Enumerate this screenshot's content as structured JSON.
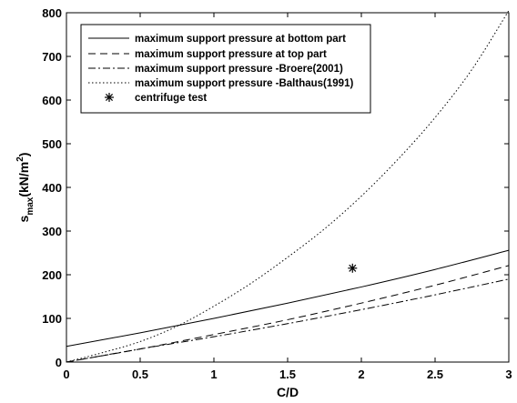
{
  "chart_data": {
    "type": "line",
    "xlabel": "C/D",
    "ylabel": {
      "main": "s",
      "sub": "max",
      "unit_open": "(kN/m",
      "unit_sup": "2",
      "unit_close": ")"
    },
    "xlim": [
      0,
      3
    ],
    "ylim": [
      0,
      800
    ],
    "xticks": [
      "0",
      "0.5",
      "1",
      "1.5",
      "2",
      "2.5",
      "3"
    ],
    "yticks": [
      "0",
      "100",
      "200",
      "300",
      "400",
      "500",
      "600",
      "700",
      "800"
    ],
    "grid": false,
    "legend_position": "top-left",
    "series": [
      {
        "name": "maximum support pressure at bottom part",
        "style": "solid",
        "color": "#000000",
        "x": [
          0,
          0.5,
          1,
          1.5,
          2,
          2.5,
          3
        ],
        "y": [
          36,
          67,
          100,
          135,
          172,
          212,
          256
        ]
      },
      {
        "name": "maximum support pressure at top part",
        "style": "dashed",
        "color": "#000000",
        "x": [
          0,
          0.5,
          1,
          1.5,
          2,
          2.5,
          3
        ],
        "y": [
          0,
          30,
          63,
          97,
          135,
          176,
          221
        ]
      },
      {
        "name": "maximum support pressure -Broere(2001)",
        "style": "dashdot",
        "color": "#000000",
        "x": [
          0,
          0.5,
          1,
          1.5,
          2,
          2.5,
          3
        ],
        "y": [
          0,
          30,
          58,
          88,
          120,
          154,
          190
        ]
      },
      {
        "name": "maximum support pressure -Balthaus(1991)",
        "style": "dotted",
        "color": "#000000",
        "x": [
          0,
          0.25,
          0.5,
          0.75,
          1,
          1.25,
          1.5,
          1.75,
          2,
          2.25,
          2.5,
          2.75,
          3
        ],
        "y": [
          0,
          22,
          47,
          82,
          128,
          180,
          240,
          305,
          380,
          465,
          560,
          670,
          805
        ]
      },
      {
        "name": "centrifuge test",
        "style": "marker",
        "marker": "asterisk",
        "color": "#000000",
        "x": [
          1.94
        ],
        "y": [
          215
        ]
      }
    ]
  }
}
